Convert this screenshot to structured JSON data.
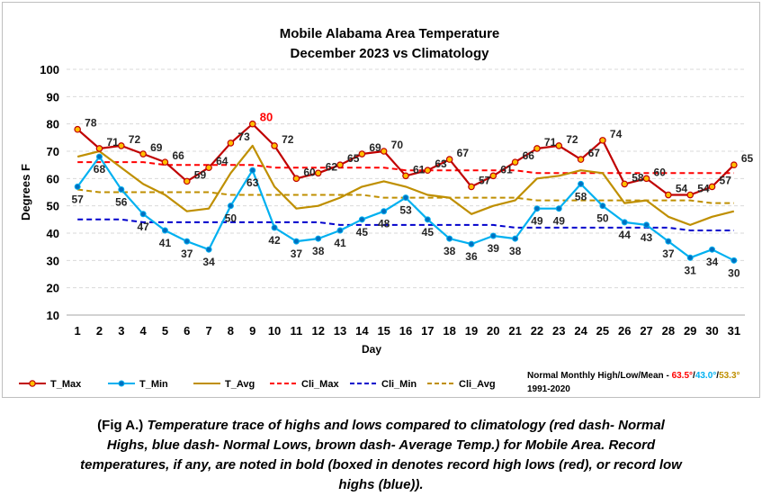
{
  "chart_data": {
    "type": "line",
    "title": "Mobile Alabama Area Temperature",
    "subtitle": "December 2023 vs Climatology",
    "xlabel": "Day",
    "ylabel": "Degrees F",
    "ylim": [
      10,
      100
    ],
    "yticks": [
      "10",
      "20",
      "30",
      "40",
      "50",
      "60",
      "70",
      "80",
      "90",
      "100"
    ],
    "x": [
      1,
      2,
      3,
      4,
      5,
      6,
      7,
      8,
      9,
      10,
      11,
      12,
      13,
      14,
      15,
      16,
      17,
      18,
      19,
      20,
      21,
      22,
      23,
      24,
      25,
      26,
      27,
      28,
      29,
      30,
      31
    ],
    "grid": "horizontal dashed",
    "legend_position": "bottom",
    "series": [
      {
        "name": "T_Max",
        "color": "#c00000",
        "style": "solid-marker",
        "values": [
          78,
          71,
          72,
          69,
          66,
          59,
          64,
          73,
          80,
          72,
          60,
          62,
          65,
          69,
          70,
          61,
          63,
          67,
          57,
          61,
          66,
          71,
          72,
          67,
          74,
          58,
          60,
          54,
          54,
          57,
          65
        ]
      },
      {
        "name": "T_Min",
        "color": "#00b0f0",
        "style": "solid-marker",
        "values": [
          57,
          68,
          56,
          47,
          41,
          37,
          34,
          50,
          63,
          42,
          37,
          38,
          41,
          45,
          48,
          53,
          45,
          38,
          36,
          39,
          38,
          49,
          49,
          58,
          50,
          44,
          43,
          37,
          31,
          34,
          30
        ]
      },
      {
        "name": "T_Avg",
        "color": "#bf8f00",
        "style": "solid",
        "values": [
          68,
          70,
          64,
          58,
          54,
          48,
          49,
          62,
          72,
          57,
          49,
          50,
          53,
          57,
          59,
          57,
          54,
          53,
          47,
          50,
          52,
          60,
          61,
          63,
          62,
          51,
          52,
          46,
          43,
          46,
          48
        ]
      },
      {
        "name": "Cli_Max",
        "color": "#ff0000",
        "style": "dash",
        "values": [
          66,
          66,
          66,
          66,
          65,
          65,
          65,
          65,
          65,
          64,
          64,
          64,
          64,
          64,
          64,
          63,
          63,
          63,
          63,
          63,
          63,
          62,
          62,
          62,
          62,
          62,
          62,
          62,
          62,
          62,
          62
        ]
      },
      {
        "name": "Cli_Min",
        "color": "#0000cc",
        "style": "dash",
        "values": [
          45,
          45,
          45,
          44,
          44,
          44,
          44,
          44,
          44,
          44,
          44,
          44,
          43,
          43,
          43,
          43,
          43,
          43,
          43,
          43,
          42,
          42,
          42,
          42,
          42,
          42,
          42,
          42,
          41,
          41,
          41
        ]
      },
      {
        "name": "Cli_Avg",
        "color": "#bf8f00",
        "style": "dash",
        "values": [
          56,
          55,
          55,
          55,
          55,
          55,
          55,
          54,
          54,
          54,
          54,
          54,
          54,
          54,
          53,
          53,
          53,
          53,
          53,
          53,
          53,
          52,
          52,
          52,
          52,
          52,
          52,
          52,
          52,
          51,
          51
        ]
      }
    ],
    "max_labels": [
      "78",
      "71",
      "72",
      "69",
      "66",
      "59",
      "64",
      "73",
      "80",
      "72",
      "60",
      "62",
      "65",
      "69",
      "70",
      "61",
      "63",
      "67",
      "57",
      "61",
      "66",
      "71",
      "72",
      "67",
      "74",
      "58",
      "60",
      "54",
      "54",
      "57",
      "65"
    ],
    "min_labels": [
      "57",
      "68",
      "56",
      "47",
      "41",
      "37",
      "34",
      "50",
      "63",
      "42",
      "37",
      "38",
      "41",
      "45",
      "48",
      "53",
      "45",
      "38",
      "36",
      "39",
      "38",
      "49",
      "49",
      "58",
      "50",
      "44",
      "43",
      "37",
      "31",
      "34",
      "30"
    ],
    "record_day_index": 8,
    "normals_note": {
      "prefix": "Normal Monthly High/Low/Mean - ",
      "high": "63.5°",
      "low": "43.0°",
      "mean": "53.3°",
      "sep": "/",
      "period": "1991-2020"
    }
  },
  "caption": {
    "lead": "(Fig A.) ",
    "body": "Temperature trace of highs and lows compared to climatology (red dash- Normal Highs, blue dash- Normal Lows, brown dash- Average Temp.) for Mobile Area. Record temperatures, if any, are noted in bold (boxed in denotes record high lows (red), or record low highs (blue))."
  },
  "colors": {
    "max": "#c00000",
    "max_marker": "#ffc000",
    "min": "#00b0f0",
    "min_marker": "#0070c0",
    "avg": "#bf8f00",
    "record": "#ff0000",
    "grid": "#d9d9d9",
    "note_high": "#ff0000",
    "note_low": "#00b0f0",
    "note_mean": "#bf8f00"
  }
}
